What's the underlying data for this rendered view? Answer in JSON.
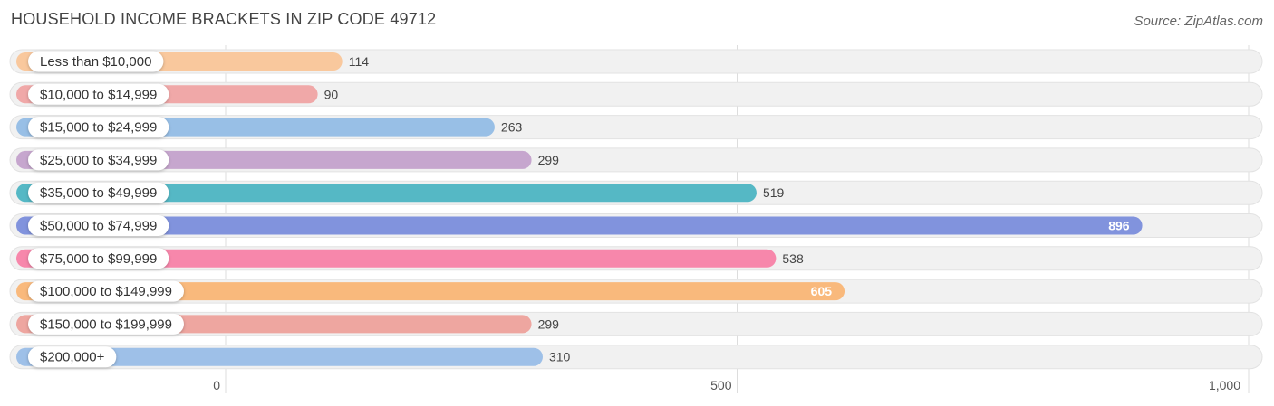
{
  "title": "HOUSEHOLD INCOME BRACKETS IN ZIP CODE 49712",
  "source": "Source: ZipAtlas.com",
  "chart_data": {
    "type": "bar",
    "orientation": "horizontal",
    "title": "HOUSEHOLD INCOME BRACKETS IN ZIP CODE 49712",
    "categories": [
      "Less than $10,000",
      "$10,000 to $14,999",
      "$15,000 to $24,999",
      "$25,000 to $34,999",
      "$35,000 to $49,999",
      "$50,000 to $74,999",
      "$75,000 to $99,999",
      "$100,000 to $149,999",
      "$150,000 to $199,999",
      "$200,000+"
    ],
    "values": [
      114,
      90,
      263,
      299,
      519,
      896,
      538,
      605,
      299,
      310
    ],
    "value_labels": [
      "114",
      "90",
      "263",
      "299",
      "519",
      "896",
      "538",
      "605",
      "299",
      "310"
    ],
    "colors": [
      "#f9c89d",
      "#f0a8a8",
      "#98bfe6",
      "#c6a6ce",
      "#55b8c5",
      "#8193dd",
      "#f787ab",
      "#f9b97c",
      "#eea6a0",
      "#9ec0e8"
    ],
    "xlim": [
      0,
      1000
    ],
    "xticks": [
      0,
      500,
      1000
    ],
    "xtick_labels": [
      "0",
      "500",
      "1,000"
    ],
    "grid": true,
    "legend": "none"
  }
}
